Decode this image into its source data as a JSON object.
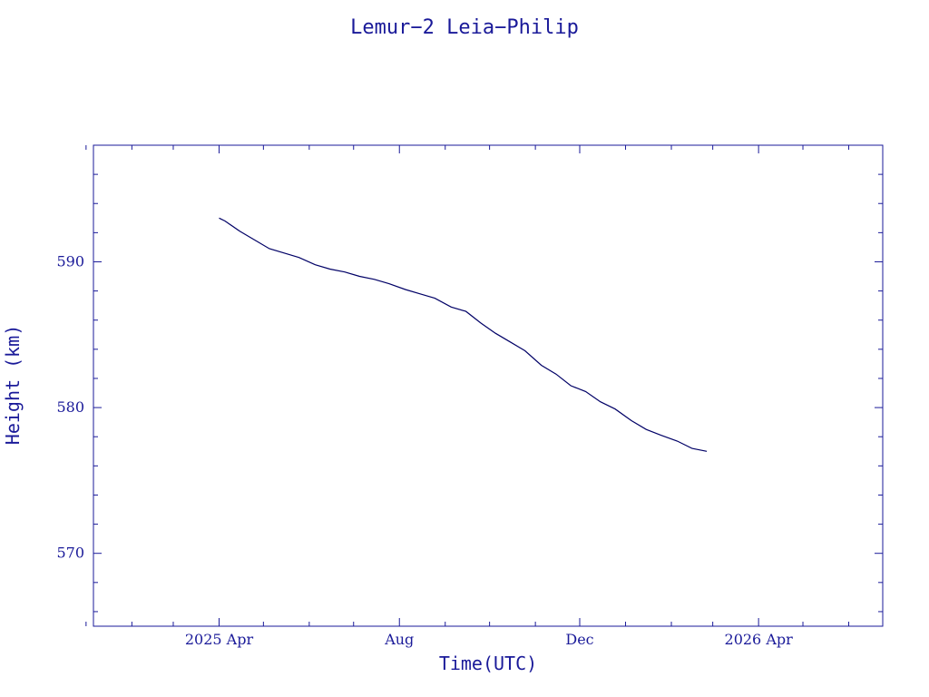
{
  "colors": {
    "axis": "#1a1a99",
    "line": "#000066",
    "background": "#ffffff"
  },
  "chart_data": {
    "type": "line",
    "title": "Lemur−2 Leia−Philip",
    "xlabel": "Time(UTC)",
    "ylabel": "Height (km)",
    "grid": false,
    "xlim": [
      "2025-01-06",
      "2026-06-24"
    ],
    "ylim": [
      565,
      598
    ],
    "x_ticks": [
      {
        "date": "2025-04-01",
        "label": "2025 Apr"
      },
      {
        "date": "2025-08-01",
        "label": "Aug"
      },
      {
        "date": "2025-12-01",
        "label": "Dec"
      },
      {
        "date": "2026-04-01",
        "label": "2026 Apr"
      }
    ],
    "x_minor_dates": [
      "2025-01-01",
      "2025-02-01",
      "2025-03-01",
      "2025-05-01",
      "2025-06-01",
      "2025-07-01",
      "2025-09-01",
      "2025-10-01",
      "2025-11-01",
      "2026-01-01",
      "2026-02-01",
      "2026-03-01",
      "2026-05-01",
      "2026-06-01"
    ],
    "y_ticks": [
      {
        "value": 570,
        "label": "570"
      },
      {
        "value": 580,
        "label": "580"
      },
      {
        "value": 590,
        "label": "590"
      }
    ],
    "y_minor_step": 2,
    "series": [
      {
        "x": [
          "2025-04-01",
          "2025-04-05",
          "2025-04-15",
          "2025-04-25",
          "2025-05-05",
          "2025-05-15",
          "2025-05-25",
          "2025-06-05",
          "2025-06-15",
          "2025-06-25",
          "2025-07-05",
          "2025-07-15",
          "2025-07-25",
          "2025-08-05",
          "2025-08-15",
          "2025-08-25",
          "2025-09-05",
          "2025-09-15",
          "2025-09-25",
          "2025-10-05",
          "2025-10-15",
          "2025-10-25",
          "2025-11-05",
          "2025-11-15",
          "2025-11-25",
          "2025-12-05",
          "2025-12-15",
          "2025-12-25",
          "2026-01-05",
          "2026-01-15",
          "2026-01-25",
          "2026-02-05",
          "2026-02-15",
          "2026-02-25",
          "2026-03-05",
          "2026-03-15"
        ],
        "y": [
          593.0,
          592.8,
          592.1,
          591.5,
          590.9,
          590.6,
          590.3,
          589.8,
          589.5,
          589.3,
          589.0,
          588.8,
          588.5,
          588.1,
          587.8,
          587.5,
          586.9,
          586.6,
          585.8,
          585.1,
          584.5,
          583.9,
          582.9,
          582.3,
          581.5,
          581.1,
          580.4,
          579.9,
          579.1,
          578.5,
          578.1,
          577.7,
          577.2,
          577.0,
          null,
          null
        ]
      }
    ]
  }
}
